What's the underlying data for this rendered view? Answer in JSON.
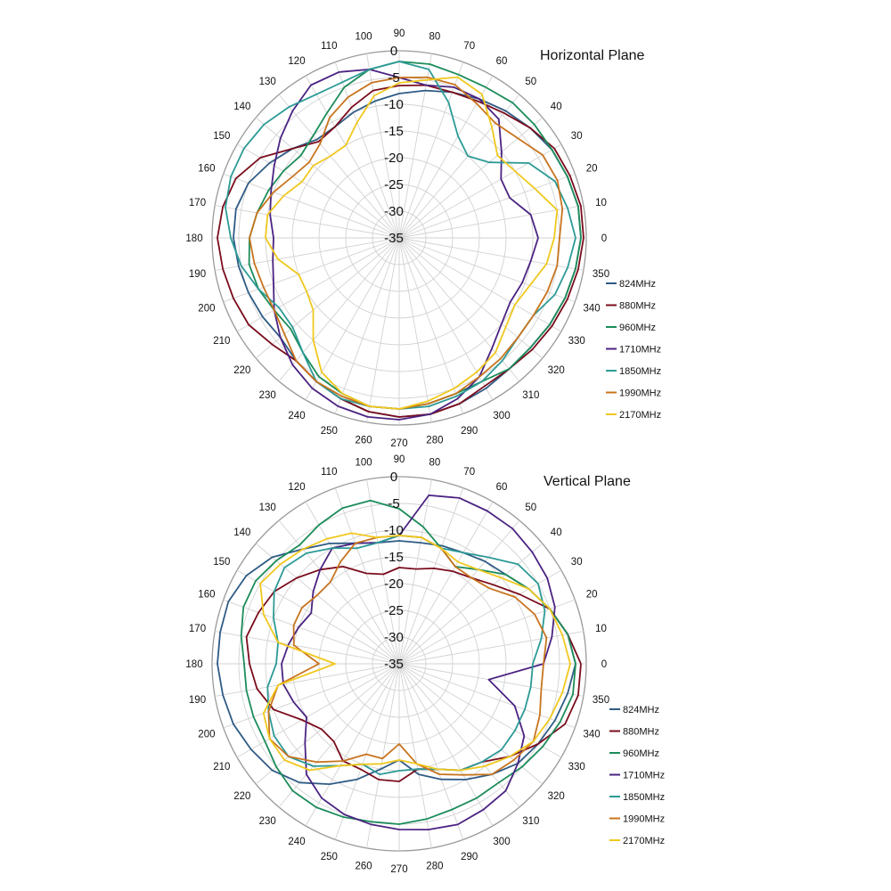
{
  "chart_data": [
    {
      "type": "polar-line",
      "title": "Horizontal Plane",
      "angle_ticks": [
        0,
        10,
        20,
        30,
        40,
        50,
        60,
        70,
        80,
        90,
        100,
        110,
        120,
        130,
        140,
        150,
        160,
        170,
        180,
        190,
        200,
        210,
        220,
        230,
        240,
        250,
        260,
        270,
        280,
        290,
        300,
        310,
        320,
        330,
        340,
        350
      ],
      "radial_ticks": [
        0,
        -5,
        -10,
        -15,
        -20,
        -25,
        -30,
        -35
      ],
      "rlim": [
        -35,
        0
      ],
      "grid": true,
      "legend_position": "right",
      "series_angles": [
        0,
        10,
        20,
        30,
        40,
        50,
        60,
        70,
        80,
        90,
        100,
        110,
        120,
        130,
        140,
        150,
        160,
        170,
        180,
        190,
        200,
        210,
        220,
        230,
        240,
        250,
        260,
        270,
        280,
        290,
        300,
        310,
        320,
        330,
        340,
        350
      ],
      "series": [
        {
          "name": "824MHz",
          "color": "#2f5b85",
          "values": [
            -1,
            -1,
            -1.5,
            -2,
            -3,
            -4,
            -5,
            -6,
            -7,
            -8,
            -9,
            -10,
            -11,
            -11,
            -9,
            -7,
            -5,
            -4,
            -4,
            -4.5,
            -5,
            -5.5,
            -6,
            -5,
            -4,
            -3,
            -2,
            -1.5,
            -1.5,
            -2,
            -2.5,
            -3,
            -3,
            -2.5,
            -2,
            -1.5
          ]
        },
        {
          "name": "880MHz",
          "color": "#7a0c1c",
          "values": [
            -0.5,
            -0.5,
            -1,
            -1.5,
            -3,
            -4.5,
            -5.5,
            -6,
            -6,
            -6.5,
            -7,
            -9,
            -11,
            -11.5,
            -9,
            -5,
            -2.5,
            -1.5,
            -1,
            -1.5,
            -2,
            -2.5,
            -4,
            -5,
            -4,
            -3,
            -2,
            -1.5,
            -1.5,
            -2,
            -3,
            -3,
            -2.5,
            -2,
            -1.5,
            -1
          ]
        },
        {
          "name": "960MHz",
          "color": "#1c8c5a",
          "values": [
            -1,
            -1,
            -1.5,
            -2,
            -2,
            -2,
            -2.5,
            -2.5,
            -2,
            -2,
            -3,
            -5,
            -8,
            -10,
            -11,
            -10,
            -9,
            -8,
            -7,
            -6.5,
            -7,
            -8,
            -8.5,
            -7,
            -5,
            -4,
            -3,
            -3,
            -3.5,
            -4,
            -4,
            -3,
            -3,
            -2.5,
            -2,
            -1.5
          ]
        },
        {
          "name": "1710MHz",
          "color": "#4b2382",
          "values": [
            -9,
            -10,
            -13,
            -13,
            -10,
            -6,
            -5,
            -5,
            -6,
            -5,
            -3,
            -2,
            -2,
            -4,
            -6,
            -8,
            -9.5,
            -10.5,
            -11.5,
            -11,
            -10,
            -8,
            -6,
            -4,
            -2.5,
            -1.5,
            -1,
            -1,
            -1.5,
            -3,
            -5,
            -8,
            -10,
            -11,
            -10.5,
            -10
          ]
        },
        {
          "name": "1850MHz",
          "color": "#2c9a96",
          "values": [
            -2,
            -3,
            -4,
            -7,
            -13,
            -15,
            -13,
            -8,
            -3,
            -2,
            -3,
            -4,
            -4,
            -3,
            -2,
            -1.5,
            -1.5,
            -2,
            -3.5,
            -5,
            -7,
            -9,
            -9,
            -7,
            -4,
            -3,
            -3,
            -3,
            -3,
            -3.5,
            -4,
            -5,
            -6,
            -6,
            -4,
            -3
          ]
        },
        {
          "name": "1990MHz",
          "color": "#c8741e",
          "values": [
            -5,
            -4,
            -3.5,
            -4,
            -6,
            -7,
            -6,
            -4.5,
            -4.5,
            -5,
            -5.5,
            -7,
            -9,
            -12,
            -13,
            -12,
            -10,
            -8,
            -7,
            -7.5,
            -8,
            -8,
            -7,
            -5,
            -4,
            -3.5,
            -3,
            -3,
            -3.5,
            -4,
            -5,
            -5.5,
            -6,
            -6,
            -5.5,
            -5
          ]
        },
        {
          "name": "2170MHz",
          "color": "#f0c81e",
          "values": [
            -6,
            -5,
            -8,
            -10,
            -11,
            -8,
            -4,
            -3,
            -5,
            -6,
            -8,
            -12,
            -15,
            -15,
            -14,
            -14,
            -12,
            -10,
            -10,
            -12,
            -15,
            -15,
            -14,
            -10,
            -6,
            -4,
            -3,
            -3,
            -4,
            -5,
            -6,
            -7,
            -9,
            -10,
            -9,
            -7
          ]
        }
      ],
      "legend": [
        {
          "label": "824MHz",
          "color": "#2f5b85"
        },
        {
          "label": "880MHz",
          "color": "#7a0c1c"
        },
        {
          "label": "960MHz",
          "color": "#1c8c5a"
        },
        {
          "label": "1710MHz",
          "color": "#4b2382"
        },
        {
          "label": "1850MHz",
          "color": "#2c9a96"
        },
        {
          "label": "1990MHz",
          "color": "#c8741e"
        },
        {
          "label": "2170MHz",
          "color": "#f0c81e"
        }
      ]
    },
    {
      "type": "polar-line",
      "title": "Vertical Plane",
      "angle_ticks": [
        0,
        10,
        20,
        30,
        40,
        50,
        60,
        70,
        80,
        90,
        100,
        110,
        120,
        130,
        140,
        150,
        160,
        170,
        180,
        190,
        200,
        210,
        220,
        230,
        240,
        250,
        260,
        270,
        280,
        290,
        300,
        310,
        320,
        330,
        340,
        350
      ],
      "radial_ticks": [
        0,
        -5,
        -10,
        -15,
        -20,
        -25,
        -30,
        -35
      ],
      "rlim": [
        -35,
        0
      ],
      "grid": true,
      "legend_position": "right",
      "series_angles": [
        0,
        10,
        20,
        30,
        40,
        50,
        60,
        70,
        80,
        90,
        100,
        110,
        120,
        130,
        140,
        150,
        160,
        170,
        180,
        190,
        200,
        210,
        220,
        230,
        240,
        250,
        260,
        270,
        280,
        290,
        300,
        310,
        320,
        330,
        340,
        350
      ],
      "series": [
        {
          "name": "824MHz",
          "color": "#2f5b85",
          "values": [
            -2,
            -3,
            -5,
            -7,
            -9,
            -10,
            -11,
            -11.5,
            -12,
            -12,
            -12,
            -11,
            -9,
            -7,
            -4,
            -2,
            -1,
            -1,
            -1,
            -1.5,
            -2,
            -3,
            -4,
            -6,
            -9,
            -12,
            -15,
            -17,
            -14,
            -12,
            -10,
            -8,
            -6,
            -5,
            -4,
            -3
          ]
        },
        {
          "name": "880MHz",
          "color": "#7a0c1c",
          "values": [
            -1,
            -3,
            -5,
            -9,
            -12,
            -14,
            -15,
            -16,
            -17,
            -17,
            -18,
            -17,
            -14,
            -12,
            -10,
            -8,
            -7,
            -6,
            -7,
            -8,
            -10,
            -14,
            -16,
            -16,
            -14,
            -14,
            -13,
            -13,
            -15,
            -14,
            -12,
            -11,
            -8,
            -5,
            -2,
            -1
          ]
        },
        {
          "name": "960MHz",
          "color": "#1c8c5a",
          "values": [
            -2,
            -3,
            -5,
            -7,
            -9,
            -12,
            -14,
            -12,
            -9,
            -6,
            -4,
            -4,
            -5,
            -6,
            -5,
            -4,
            -4,
            -5,
            -6,
            -6,
            -6,
            -6,
            -5,
            -4,
            -4,
            -4.5,
            -5,
            -5,
            -5.5,
            -6,
            -6,
            -6,
            -5,
            -4,
            -3,
            -2
          ]
        },
        {
          "name": "1710MHz",
          "color": "#4b2382",
          "values": [
            -8,
            -6,
            -4,
            -3,
            -2.5,
            -2,
            -2,
            -2,
            -3,
            -11,
            -12,
            -11,
            -10,
            -12,
            -14,
            -16,
            -15,
            -14,
            -13,
            -13,
            -14,
            -15,
            -12,
            -8,
            -6,
            -5,
            -4.5,
            -4,
            -3.5,
            -3,
            -3.5,
            -4,
            -6,
            -8,
            -12,
            -18
          ]
        },
        {
          "name": "1850MHz",
          "color": "#2c9a96",
          "values": [
            -10,
            -8,
            -6,
            -5,
            -6,
            -9,
            -11,
            -12,
            -11,
            -11,
            -12,
            -12,
            -10,
            -8,
            -7,
            -8,
            -10,
            -12,
            -12,
            -10,
            -9,
            -8,
            -8,
            -10,
            -13,
            -15,
            -14,
            -15,
            -15,
            -14,
            -12,
            -11,
            -10,
            -10,
            -10,
            -10
          ]
        },
        {
          "name": "1990MHz",
          "color": "#c8741e",
          "values": [
            -8,
            -7,
            -8,
            -10,
            -13,
            -14,
            -14,
            -12,
            -11,
            -11,
            -11,
            -11,
            -13,
            -15,
            -15,
            -14,
            -14,
            -15,
            -20,
            -12,
            -9,
            -7,
            -8,
            -11,
            -14,
            -17,
            -17,
            -20,
            -16,
            -13,
            -11,
            -8,
            -7,
            -6,
            -7,
            -8
          ]
        },
        {
          "name": "2170MHz",
          "color": "#f0c81e",
          "values": [
            -3,
            -4,
            -5,
            -7,
            -10,
            -12,
            -13,
            -12,
            -11,
            -11,
            -11,
            -9,
            -8,
            -7,
            -6,
            -5,
            -8,
            -12,
            -23,
            -12,
            -8,
            -7,
            -7,
            -9,
            -13,
            -15,
            -16,
            -17,
            -16,
            -14,
            -12,
            -10,
            -8,
            -6,
            -5,
            -4
          ]
        }
      ],
      "legend": [
        {
          "label": "824MHz",
          "color": "#2f5b85"
        },
        {
          "label": "880MHz",
          "color": "#7a0c1c"
        },
        {
          "label": "960MHz",
          "color": "#1c8c5a"
        },
        {
          "label": "1710MHz",
          "color": "#4b2382"
        },
        {
          "label": "1850MHz",
          "color": "#2c9a96"
        },
        {
          "label": "1990MHz",
          "color": "#c8741e"
        },
        {
          "label": "2170MHz",
          "color": "#f0c81e"
        }
      ]
    }
  ]
}
